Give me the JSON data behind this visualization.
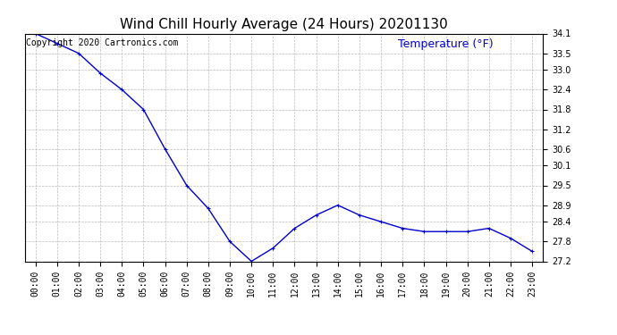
{
  "title": "Wind Chill Hourly Average (24 Hours) 20201130",
  "ylabel": "Temperature (°F)",
  "copyright": "Copyright 2020 Cartronics.com",
  "line_color": "#0000cc",
  "background_color": "#ffffff",
  "grid_color": "#bbbbbb",
  "hours": [
    "00:00",
    "01:00",
    "02:00",
    "03:00",
    "04:00",
    "05:00",
    "06:00",
    "07:00",
    "08:00",
    "09:00",
    "10:00",
    "11:00",
    "12:00",
    "13:00",
    "14:00",
    "15:00",
    "16:00",
    "17:00",
    "18:00",
    "19:00",
    "20:00",
    "21:00",
    "22:00",
    "23:00"
  ],
  "values": [
    34.1,
    33.8,
    33.5,
    32.9,
    32.4,
    31.8,
    30.6,
    29.5,
    28.8,
    27.8,
    27.2,
    27.6,
    28.2,
    28.6,
    28.9,
    28.6,
    28.4,
    28.2,
    28.1,
    28.1,
    28.1,
    28.2,
    27.9,
    27.5
  ],
  "yticks": [
    27.2,
    27.8,
    28.4,
    28.9,
    29.5,
    30.1,
    30.6,
    31.2,
    31.8,
    32.4,
    33.0,
    33.5,
    34.1
  ],
  "ylim": [
    27.2,
    34.1
  ],
  "title_fontsize": 11,
  "tick_fontsize": 7,
  "ylabel_fontsize": 9,
  "copyright_fontsize": 7,
  "marker": "+"
}
